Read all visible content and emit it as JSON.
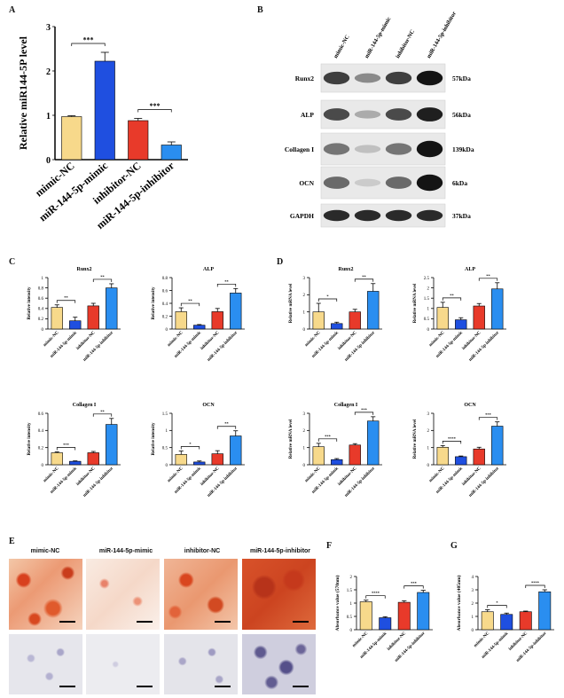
{
  "panels": {
    "A": "A",
    "B": "B",
    "C": "C",
    "D": "D",
    "E": "E",
    "F": "F",
    "G": "G"
  },
  "colors": {
    "mimic_nc": "#f7d98b",
    "mimic": "#1f4fe0",
    "inhibitor_nc": "#e83a2a",
    "inhibitor": "#2a8ef0"
  },
  "groups": [
    "mimic-NC",
    "miR-144-5p-mimic",
    "inhibitor-NC",
    "miR-144-5p-inhibitor"
  ],
  "blot": {
    "lanes": [
      "mimic-NC",
      "miR-144-5p-mimic",
      "inhibitor-NC",
      "miR-144-5p-inhibitor"
    ],
    "rows": [
      {
        "name": "Runx2",
        "kda": "57kDa",
        "intensity": [
          0.8,
          0.45,
          0.8,
          1.0
        ]
      },
      {
        "name": "ALP",
        "kda": "56kDa",
        "intensity": [
          0.75,
          0.3,
          0.75,
          0.95
        ]
      },
      {
        "name": "Collagen I",
        "kda": "139kDa",
        "intensity": [
          0.55,
          0.2,
          0.55,
          1.0
        ]
      },
      {
        "name": "OCN",
        "kda": "6kDa",
        "intensity": [
          0.6,
          0.15,
          0.6,
          1.0
        ]
      },
      {
        "name": "GAPDH",
        "kda": "37kDa",
        "intensity": [
          0.9,
          0.9,
          0.9,
          0.9
        ]
      }
    ]
  },
  "micrograph_labels": [
    "mimic-NC",
    "miR-144-5p-mimic",
    "inhibitor-NC",
    "miR-144-5p-inhibitor"
  ],
  "chart_data": [
    {
      "id": "A",
      "type": "bar",
      "title": "",
      "ylabel": "Relative miR144-5P level",
      "ylim": [
        0,
        3
      ],
      "yticks": [
        0,
        1,
        2,
        3
      ],
      "categories": [
        "mimic-NC",
        "miR-144-5p-mimic",
        "inhibitor-NC",
        "miR-144-5p-inhibitor"
      ],
      "values": [
        0.97,
        2.22,
        0.88,
        0.33
      ],
      "errors": [
        0.02,
        0.2,
        0.05,
        0.07
      ],
      "sig": [
        {
          "from": 0,
          "to": 1,
          "label": "***"
        },
        {
          "from": 2,
          "to": 3,
          "label": "***"
        }
      ]
    },
    {
      "id": "C1",
      "type": "bar",
      "title": "Runx2",
      "ylabel": "Relative intensity",
      "ylim": [
        0,
        1.0
      ],
      "yticks": [
        0.0,
        0.2,
        0.4,
        0.6,
        0.8,
        1.0
      ],
      "categories": [
        "mimic-NC",
        "miR-144-5p-mimic",
        "inhibitor-NC",
        "miR-144-5p-inhibitor"
      ],
      "values": [
        0.42,
        0.16,
        0.45,
        0.8
      ],
      "errors": [
        0.05,
        0.07,
        0.05,
        0.08
      ],
      "sig": [
        {
          "from": 0,
          "to": 1,
          "label": "**"
        },
        {
          "from": 2,
          "to": 3,
          "label": "**"
        }
      ]
    },
    {
      "id": "C2",
      "type": "bar",
      "title": "ALP",
      "ylabel": "Relative intensity",
      "ylim": [
        0,
        0.8
      ],
      "yticks": [
        0.0,
        0.2,
        0.4,
        0.6,
        0.8
      ],
      "categories": [
        "mimic-NC",
        "miR-144-5p-mimic",
        "inhibitor-NC",
        "miR-144-5p-inhibitor"
      ],
      "values": [
        0.27,
        0.06,
        0.27,
        0.56
      ],
      "errors": [
        0.06,
        0.01,
        0.05,
        0.07
      ],
      "sig": [
        {
          "from": 0,
          "to": 1,
          "label": "**"
        },
        {
          "from": 2,
          "to": 3,
          "label": "**"
        }
      ]
    },
    {
      "id": "C3",
      "type": "bar",
      "title": "Collagen I",
      "ylabel": "Relative intensity",
      "ylim": [
        0,
        0.6
      ],
      "yticks": [
        0.0,
        0.2,
        0.4,
        0.6
      ],
      "categories": [
        "mimic-NC",
        "miR-144-5p-mimic",
        "inhibitor-NC",
        "miR-144-5p-inhibitor"
      ],
      "values": [
        0.14,
        0.04,
        0.14,
        0.47
      ],
      "errors": [
        0.01,
        0.005,
        0.015,
        0.07
      ],
      "sig": [
        {
          "from": 0,
          "to": 1,
          "label": "***"
        },
        {
          "from": 2,
          "to": 3,
          "label": "**"
        }
      ]
    },
    {
      "id": "C4",
      "type": "bar",
      "title": "OCN",
      "ylabel": "Relative intensity",
      "ylim": [
        0,
        1.5
      ],
      "yticks": [
        0.0,
        0.5,
        1.0,
        1.5
      ],
      "categories": [
        "mimic-NC",
        "miR-144-5p-mimic",
        "inhibitor-NC",
        "miR-144-5p-inhibitor"
      ],
      "values": [
        0.3,
        0.08,
        0.32,
        0.84
      ],
      "errors": [
        0.1,
        0.03,
        0.09,
        0.15
      ],
      "sig": [
        {
          "from": 0,
          "to": 1,
          "label": "*"
        },
        {
          "from": 2,
          "to": 3,
          "label": "**"
        }
      ]
    },
    {
      "id": "D1",
      "type": "bar",
      "title": "Runx2",
      "ylabel": "Relative mRNA level",
      "ylim": [
        0,
        3
      ],
      "yticks": [
        0,
        1,
        2,
        3
      ],
      "categories": [
        "mimic-NC",
        "miR-144-5p-mimic",
        "inhibitor-NC",
        "miR-144-5p-inhibitor"
      ],
      "values": [
        1.0,
        0.32,
        1.0,
        2.2
      ],
      "errors": [
        0.5,
        0.08,
        0.15,
        0.45
      ],
      "sig": [
        {
          "from": 0,
          "to": 1,
          "label": "*"
        },
        {
          "from": 2,
          "to": 3,
          "label": "**"
        }
      ]
    },
    {
      "id": "D2",
      "type": "bar",
      "title": "ALP",
      "ylabel": "Relative mRNA level",
      "ylim": [
        0,
        2.5
      ],
      "yticks": [
        0.0,
        0.5,
        1.0,
        1.5,
        2.0,
        2.5
      ],
      "categories": [
        "mimic-NC",
        "miR-144-5p-mimic",
        "inhibitor-NC",
        "miR-144-5p-inhibitor"
      ],
      "values": [
        1.05,
        0.45,
        1.12,
        1.95
      ],
      "errors": [
        0.25,
        0.1,
        0.12,
        0.3
      ],
      "sig": [
        {
          "from": 0,
          "to": 1,
          "label": "**"
        },
        {
          "from": 2,
          "to": 3,
          "label": "**"
        }
      ]
    },
    {
      "id": "D3",
      "type": "bar",
      "title": "Collagen I",
      "ylabel": "Relative mRNA level",
      "ylim": [
        0,
        3
      ],
      "yticks": [
        0,
        1,
        2,
        3
      ],
      "categories": [
        "mimic-NC",
        "miR-144-5p-mimic",
        "inhibitor-NC",
        "miR-144-5p-inhibitor"
      ],
      "values": [
        1.05,
        0.3,
        1.15,
        2.55
      ],
      "errors": [
        0.2,
        0.06,
        0.08,
        0.25
      ],
      "sig": [
        {
          "from": 0,
          "to": 1,
          "label": "***"
        },
        {
          "from": 2,
          "to": 3,
          "label": "***"
        }
      ]
    },
    {
      "id": "D4",
      "type": "bar",
      "title": "OCN",
      "ylabel": "Relative mRNA level",
      "ylim": [
        0,
        3
      ],
      "yticks": [
        0,
        1,
        2,
        3
      ],
      "categories": [
        "mimic-NC",
        "miR-144-5p-mimic",
        "inhibitor-NC",
        "miR-144-5p-inhibitor"
      ],
      "values": [
        1.02,
        0.47,
        0.92,
        2.25
      ],
      "errors": [
        0.1,
        0.04,
        0.1,
        0.25
      ],
      "sig": [
        {
          "from": 0,
          "to": 1,
          "label": "****"
        },
        {
          "from": 2,
          "to": 3,
          "label": "***"
        }
      ]
    },
    {
      "id": "F",
      "type": "bar",
      "title": "",
      "ylabel": "Absorbance value (570nm)",
      "ylim": [
        0,
        2.0
      ],
      "yticks": [
        0.0,
        0.5,
        1.0,
        1.5,
        2.0
      ],
      "categories": [
        "mimic-NC",
        "miR-144-5p-mimic",
        "inhibitor-NC",
        "miR-144-5p-inhibitor"
      ],
      "values": [
        1.05,
        0.45,
        1.03,
        1.4
      ],
      "errors": [
        0.06,
        0.04,
        0.06,
        0.08
      ],
      "sig": [
        {
          "from": 0,
          "to": 1,
          "label": "****"
        },
        {
          "from": 2,
          "to": 3,
          "label": "***"
        }
      ]
    },
    {
      "id": "G",
      "type": "bar",
      "title": "",
      "ylabel": "Absorbance value (405nm)",
      "ylim": [
        0,
        4
      ],
      "yticks": [
        0,
        1,
        2,
        3,
        4
      ],
      "categories": [
        "mimic-NC",
        "miR-144-5p-mimic",
        "inhibitor-NC",
        "miR-144-5p-inhibitor"
      ],
      "values": [
        1.35,
        1.15,
        1.35,
        2.85
      ],
      "errors": [
        0.15,
        0.1,
        0.05,
        0.15
      ],
      "sig": [
        {
          "from": 0,
          "to": 1,
          "label": "*"
        },
        {
          "from": 2,
          "to": 3,
          "label": "****"
        }
      ]
    }
  ]
}
